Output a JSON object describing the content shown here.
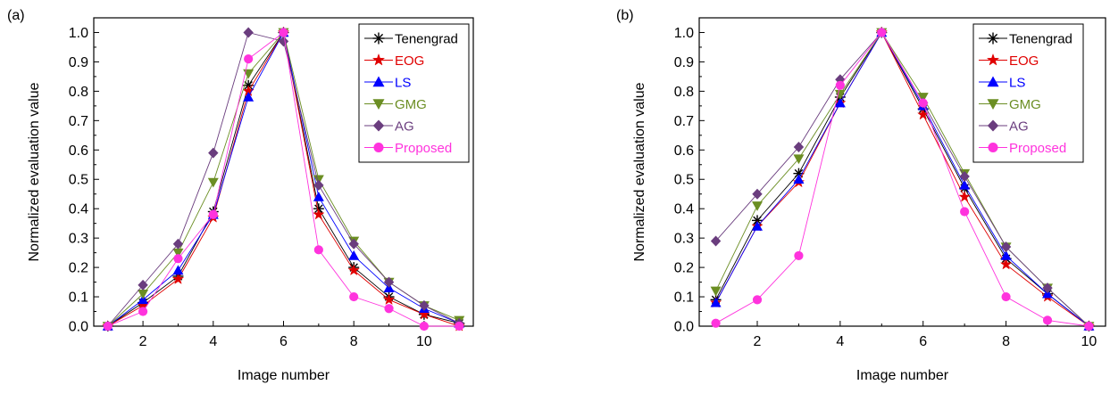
{
  "chart_data": [
    {
      "type": "line",
      "panel_label": "(a)",
      "xlabel": "Image number",
      "ylabel": "Normalized evaluation value",
      "xlim": [
        0.6,
        11.4
      ],
      "ylim": [
        0,
        1.05
      ],
      "xticks": [
        "2",
        "4",
        "6",
        "8",
        "10"
      ],
      "xtick_values": [
        2,
        4,
        6,
        8,
        10
      ],
      "yticks": [
        "0.0",
        "0.1",
        "0.2",
        "0.3",
        "0.4",
        "0.5",
        "0.6",
        "0.7",
        "0.8",
        "0.9",
        "1.0"
      ],
      "ytick_values": [
        0,
        0.1,
        0.2,
        0.3,
        0.4,
        0.5,
        0.6,
        0.7,
        0.8,
        0.9,
        1.0
      ],
      "grid": false,
      "legend_position": "top-right",
      "x": [
        1,
        2,
        3,
        4,
        5,
        6,
        7,
        8,
        9,
        10,
        11
      ],
      "series": [
        {
          "name": "Tenengrad",
          "color": "#000000",
          "marker": "asterisk",
          "values": [
            0.0,
            0.08,
            0.17,
            0.39,
            0.82,
            1.0,
            0.4,
            0.2,
            0.1,
            0.04,
            0.01
          ]
        },
        {
          "name": "EOG",
          "color": "#e00000",
          "marker": "star",
          "values": [
            0.0,
            0.07,
            0.16,
            0.37,
            0.8,
            1.0,
            0.38,
            0.19,
            0.09,
            0.04,
            0.0
          ]
        },
        {
          "name": "LS",
          "color": "#0000ff",
          "marker": "triangle-up",
          "values": [
            0.0,
            0.09,
            0.19,
            0.38,
            0.78,
            1.0,
            0.44,
            0.24,
            0.13,
            0.06,
            0.01
          ]
        },
        {
          "name": "GMG",
          "color": "#6b8e23",
          "marker": "triangle-down",
          "values": [
            0.0,
            0.11,
            0.25,
            0.49,
            0.86,
            1.0,
            0.5,
            0.29,
            0.15,
            0.07,
            0.02
          ]
        },
        {
          "name": "AG",
          "color": "#6a3d7e",
          "marker": "diamond",
          "values": [
            0.0,
            0.14,
            0.28,
            0.59,
            1.0,
            0.97,
            0.48,
            0.28,
            0.15,
            0.07,
            0.01
          ]
        },
        {
          "name": "Proposed",
          "color": "#ff33dd",
          "marker": "circle",
          "values": [
            0.0,
            0.05,
            0.23,
            0.38,
            0.91,
            1.0,
            0.26,
            0.1,
            0.06,
            0.0,
            0.0
          ]
        }
      ]
    },
    {
      "type": "line",
      "panel_label": "(b)",
      "xlabel": "Image number",
      "ylabel": "Normalized evaluation value",
      "xlim": [
        0.6,
        10.4
      ],
      "ylim": [
        0,
        1.05
      ],
      "xticks": [
        "2",
        "4",
        "6",
        "8",
        "10"
      ],
      "xtick_values": [
        2,
        4,
        6,
        8,
        10
      ],
      "yticks": [
        "0.0",
        "0.1",
        "0.2",
        "0.3",
        "0.4",
        "0.5",
        "0.6",
        "0.7",
        "0.8",
        "0.9",
        "1.0"
      ],
      "ytick_values": [
        0,
        0.1,
        0.2,
        0.3,
        0.4,
        0.5,
        0.6,
        0.7,
        0.8,
        0.9,
        1.0
      ],
      "grid": false,
      "legend_position": "top-right",
      "x": [
        1,
        2,
        3,
        4,
        5,
        6,
        7,
        8,
        9,
        10
      ],
      "series": [
        {
          "name": "Tenengrad",
          "color": "#000000",
          "marker": "asterisk",
          "values": [
            0.09,
            0.36,
            0.52,
            0.78,
            1.0,
            0.74,
            0.47,
            0.23,
            0.11,
            0.0
          ]
        },
        {
          "name": "EOG",
          "color": "#e00000",
          "marker": "star",
          "values": [
            0.08,
            0.34,
            0.49,
            0.76,
            1.0,
            0.72,
            0.44,
            0.21,
            0.1,
            0.0
          ]
        },
        {
          "name": "LS",
          "color": "#0000ff",
          "marker": "triangle-up",
          "values": [
            0.08,
            0.34,
            0.5,
            0.76,
            1.0,
            0.75,
            0.48,
            0.24,
            0.11,
            0.0
          ]
        },
        {
          "name": "GMG",
          "color": "#6b8e23",
          "marker": "triangle-down",
          "values": [
            0.12,
            0.41,
            0.57,
            0.79,
            1.0,
            0.78,
            0.52,
            0.27,
            0.13,
            0.0
          ]
        },
        {
          "name": "AG",
          "color": "#6a3d7e",
          "marker": "diamond",
          "values": [
            0.29,
            0.45,
            0.61,
            0.84,
            1.0,
            0.76,
            0.51,
            0.27,
            0.13,
            0.0
          ]
        },
        {
          "name": "Proposed",
          "color": "#ff33dd",
          "marker": "circle",
          "values": [
            0.01,
            0.09,
            0.24,
            0.82,
            1.0,
            0.76,
            0.39,
            0.1,
            0.02,
            0.0
          ]
        }
      ]
    }
  ]
}
